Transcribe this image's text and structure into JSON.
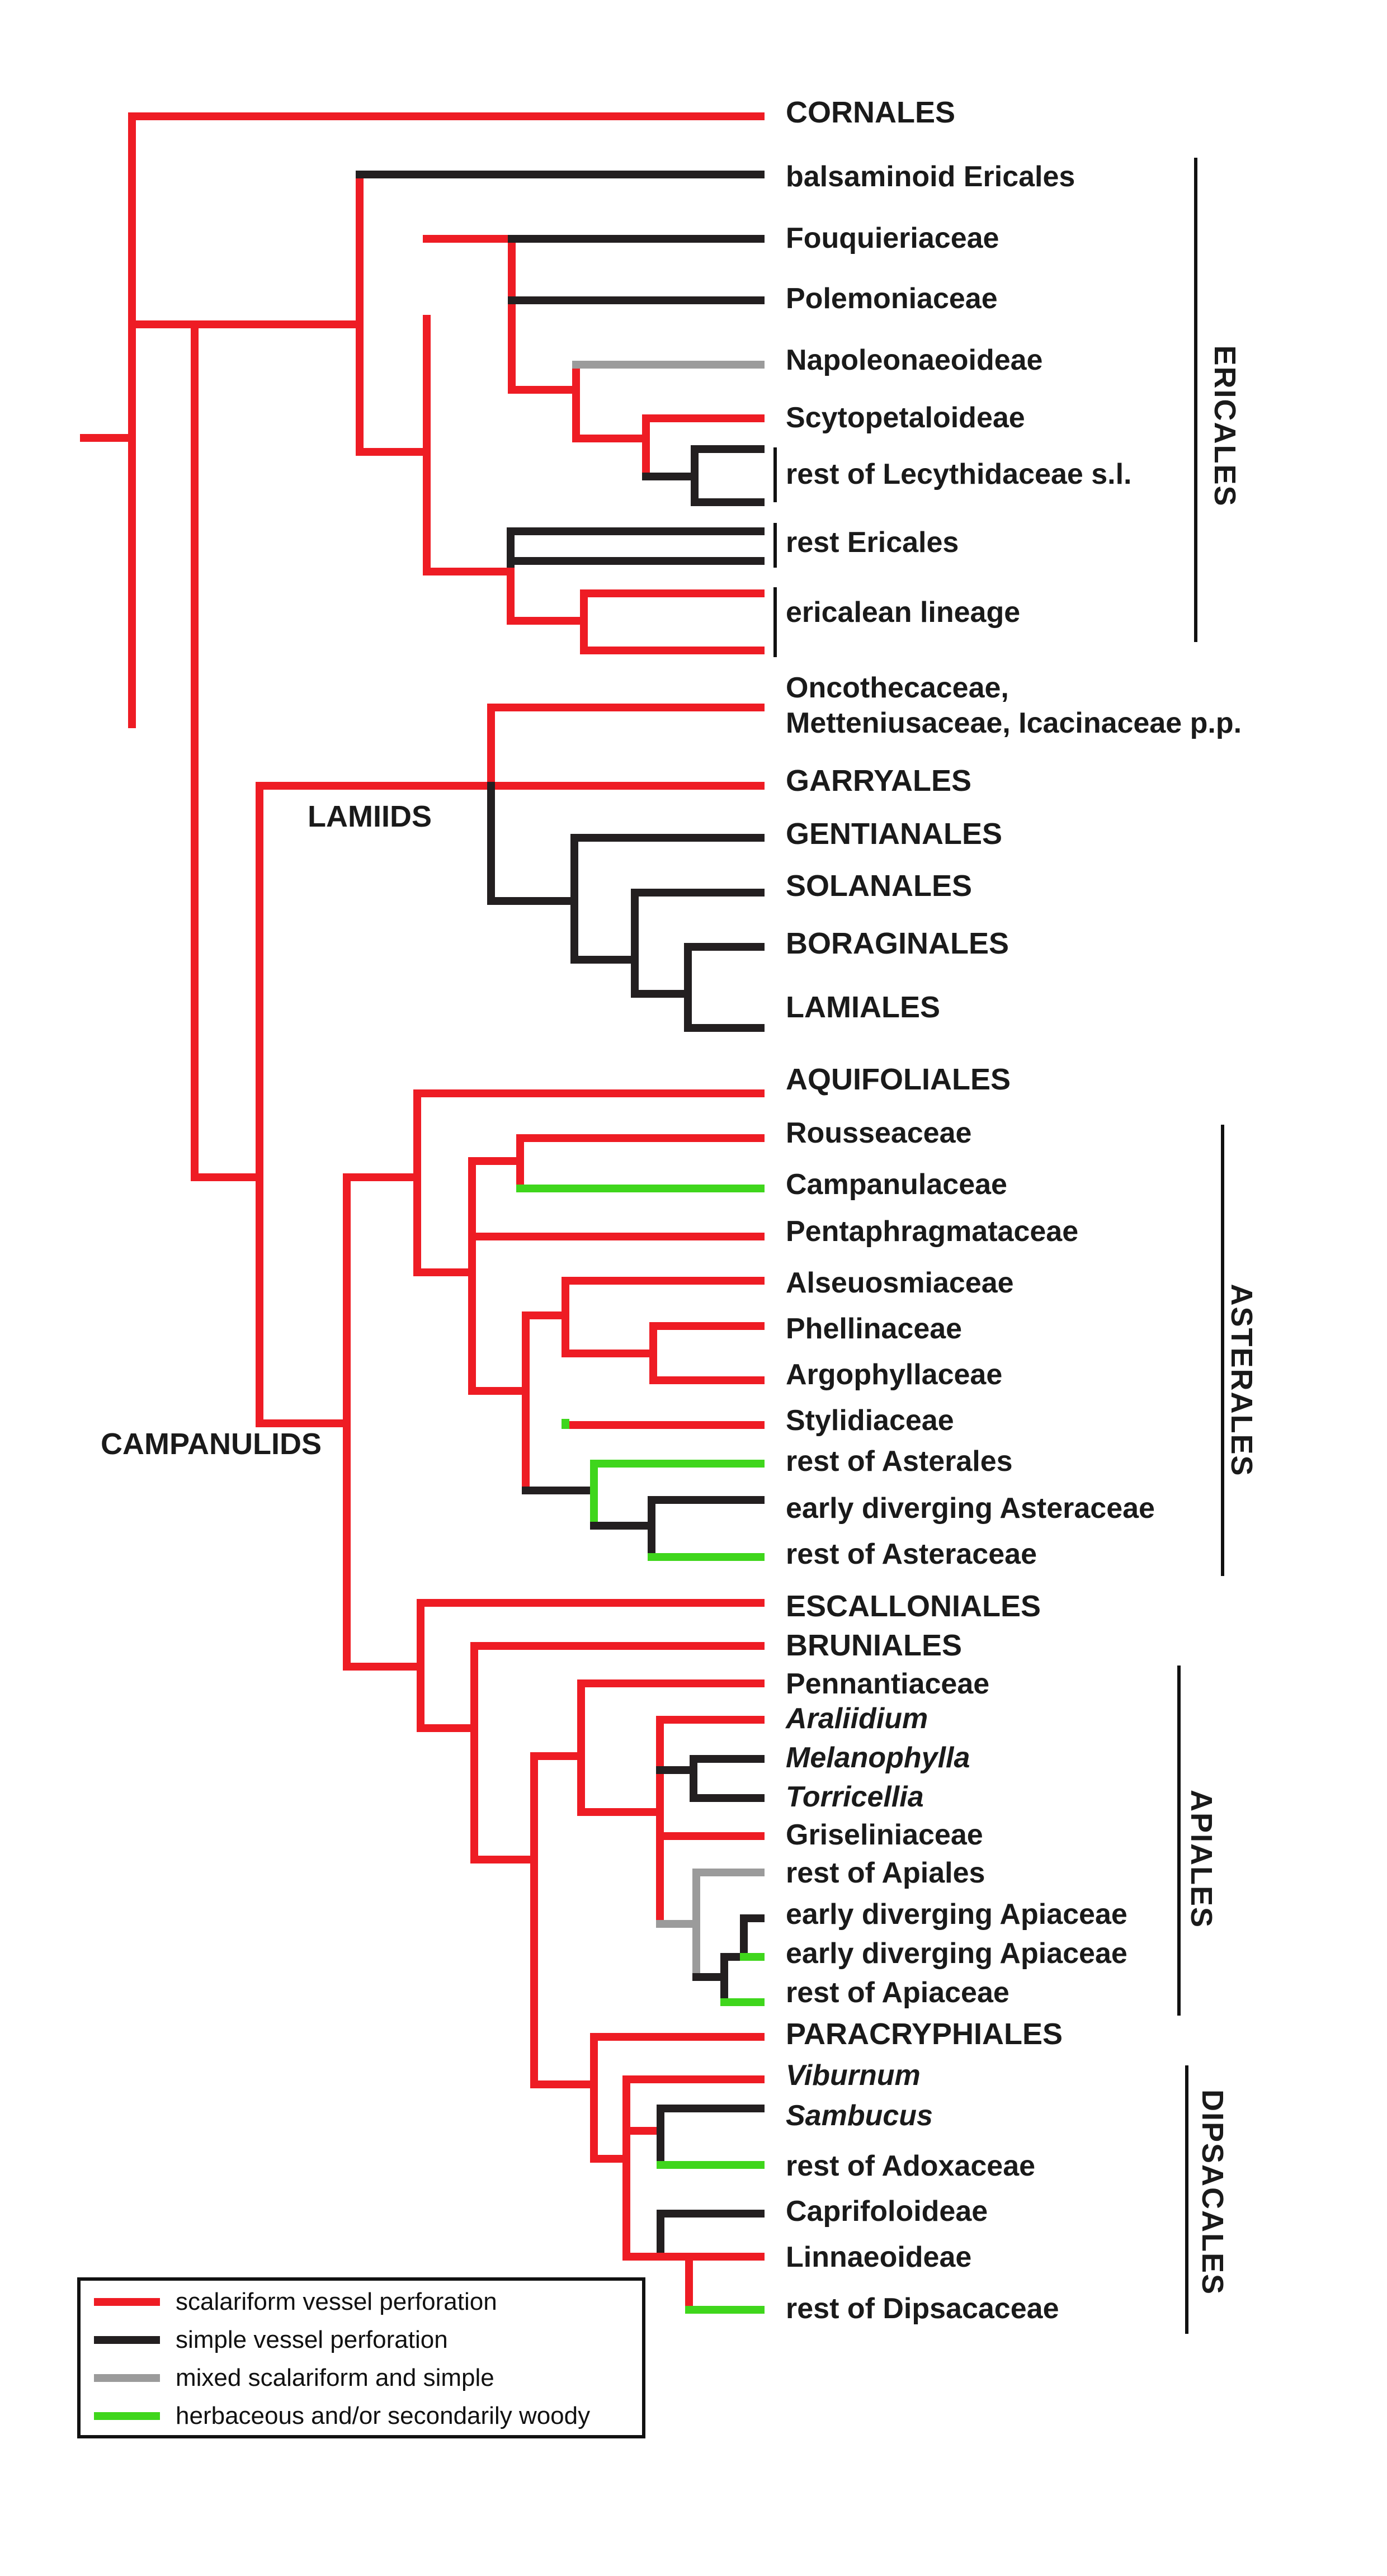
{
  "colors": {
    "scalariform": "#ee1c24",
    "simple": "#231f20",
    "mixed": "#9b9b9b",
    "herbaceous": "#3fd61c"
  },
  "taxa": [
    "CORNALES",
    "balsaminoid Ericales",
    "Fouquieriaceae",
    "Polemoniaceae",
    "Napoleonaeoideae",
    "Scytopetaloideae",
    "rest of Lecythidaceae s.l.",
    "rest Ericales",
    "ericalean lineage",
    "Oncothecaceae,",
    "Metteniusaceae, Icacinaceae p.p.",
    "GARRYALES",
    "GENTIANALES",
    "SOLANALES",
    "BORAGINALES",
    "LAMIALES",
    "AQUIFOLIALES",
    "Rousseaceae",
    "Campanulaceae",
    "Pentaphragmataceae",
    "Alseuosmiaceae",
    "Phellinaceae",
    "Argophyllaceae",
    "Stylidiaceae",
    "rest of Asterales",
    "early diverging Asteraceae",
    "rest of Asteraceae",
    "ESCALLONIALES",
    "BRUNIALES",
    "Pennantiaceae",
    "Araliidium",
    "Melanophylla",
    "Torricellia",
    "Griseliniaceae",
    "rest of Apiales",
    "early diverging Apiaceae",
    "early diverging Apiaceae",
    "rest of Apiaceae",
    "PARACRYPHIALES",
    "Viburnum",
    "Sambucus",
    "rest of Adoxaceae",
    "Caprifoloideae",
    "Linnaeoideae",
    "rest of Dipsacaceae"
  ],
  "clades": {
    "lamiids": "LAMIIDS",
    "campanulids": "CAMPANULIDS"
  },
  "groups": {
    "ericales": "ERICALES",
    "asterales": "ASTERALES",
    "apiales": "APIALES",
    "dipsacales": "DIPSACALES"
  },
  "legend": [
    {
      "color": "scalariform",
      "label": "scalariform vessel perforation"
    },
    {
      "color": "simple",
      "label": "simple vessel perforation"
    },
    {
      "color": "mixed",
      "label": "mixed scalariform and simple"
    },
    {
      "color": "herbaceous",
      "label": "herbaceous and/or secondarily woody"
    }
  ]
}
